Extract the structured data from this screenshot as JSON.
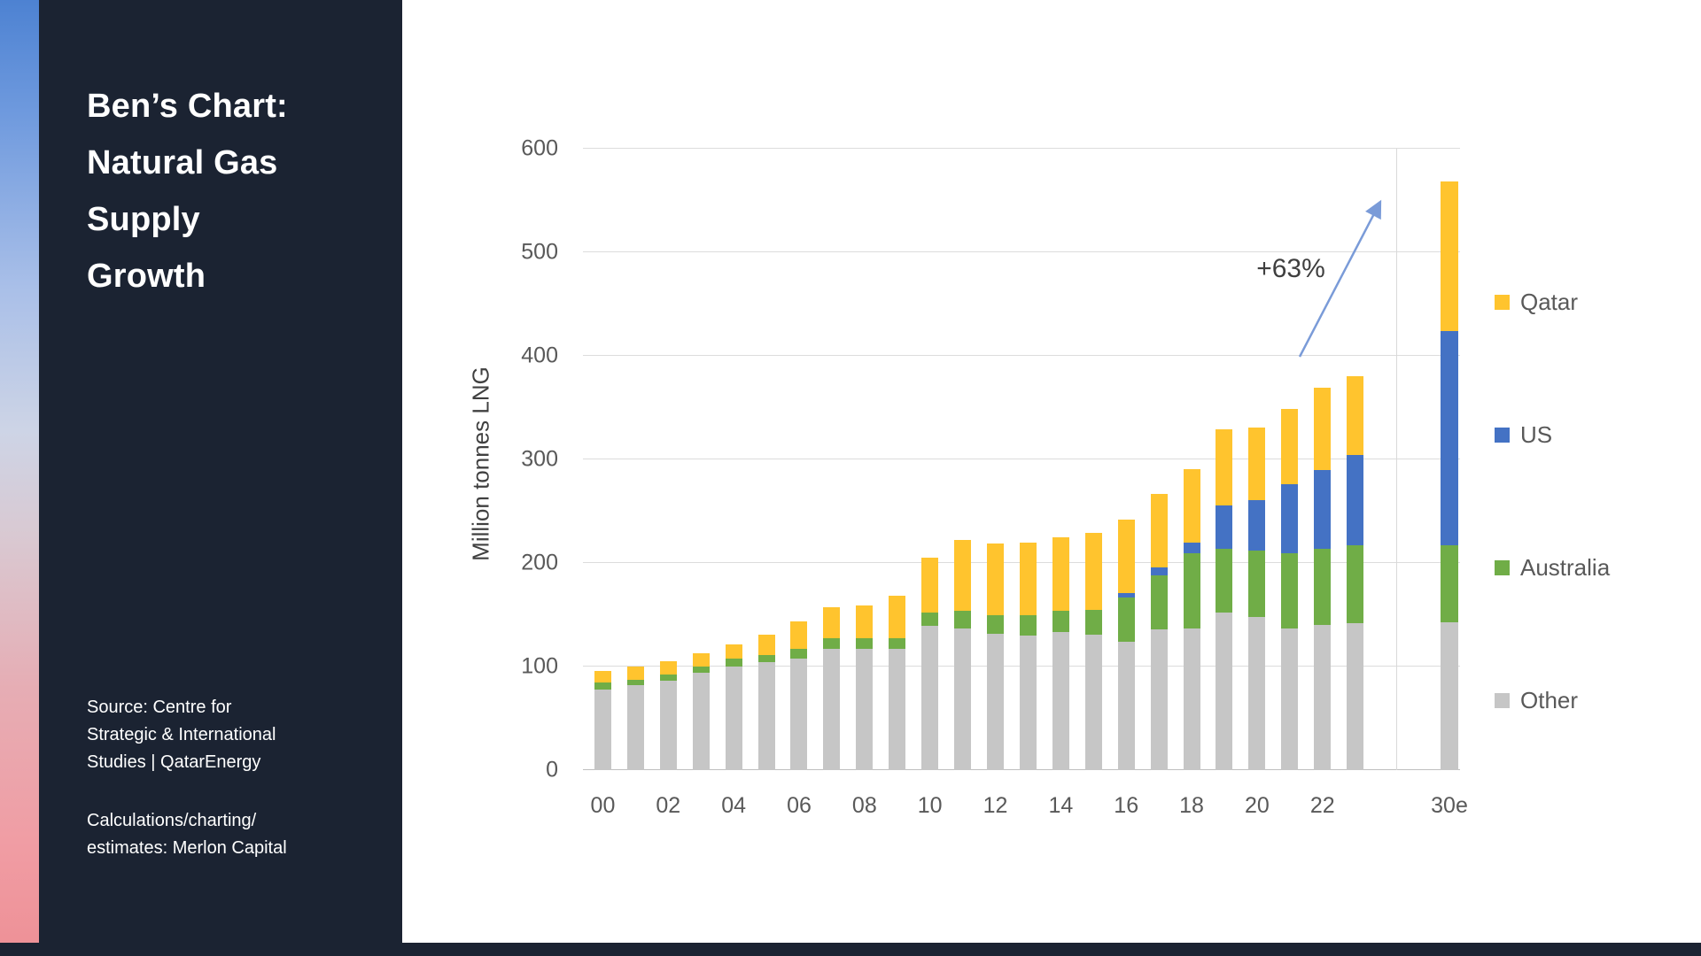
{
  "sidebar": {
    "bg_color": "#1b2332",
    "title_lines": [
      "Ben’s Chart:",
      "Natural Gas",
      "Supply",
      "Growth"
    ],
    "source_lines": [
      "Source: Centre for",
      "Strategic & International",
      "Studies | QatarEnergy"
    ],
    "credits_lines": [
      "Calculations/charting/",
      "estimates: Merlon Capital"
    ]
  },
  "chart_data": {
    "type": "bar",
    "stacked": true,
    "title": "",
    "xlabel": "",
    "ylabel": "Million tonnes LNG",
    "ylim": [
      0,
      600
    ],
    "yticks": [
      0,
      100,
      200,
      300,
      400,
      500,
      600
    ],
    "grid": true,
    "legend_position": "right",
    "categories": [
      "00",
      "01",
      "02",
      "03",
      "04",
      "05",
      "06",
      "07",
      "08",
      "09",
      "10",
      "11",
      "12",
      "13",
      "14",
      "15",
      "16",
      "17",
      "18",
      "19",
      "20",
      "21",
      "22",
      "23",
      "30e"
    ],
    "x_tick_labels": [
      "00",
      "02",
      "04",
      "06",
      "08",
      "10",
      "12",
      "14",
      "16",
      "18",
      "20",
      "22",
      "30e"
    ],
    "series": [
      {
        "name": "Other",
        "color": "#C6C6C6",
        "values": [
          78,
          82,
          86,
          94,
          100,
          104,
          108,
          117,
          117,
          117,
          139,
          137,
          132,
          130,
          133,
          131,
          124,
          136,
          137,
          152,
          148,
          137,
          140,
          142,
          143
        ]
      },
      {
        "name": "Australia",
        "color": "#70AD47",
        "values": [
          7,
          5,
          6,
          6,
          8,
          7,
          9,
          10,
          10,
          10,
          13,
          17,
          18,
          20,
          21,
          24,
          43,
          52,
          72,
          62,
          64,
          72,
          74,
          75,
          74
        ]
      },
      {
        "name": "US",
        "color": "#4472C4",
        "values": [
          0,
          0,
          0,
          0,
          0,
          0,
          0,
          0,
          0,
          0,
          0,
          0,
          0,
          0,
          0,
          0,
          4,
          8,
          11,
          42,
          49,
          67,
          76,
          87,
          207
        ]
      },
      {
        "name": "Qatar",
        "color": "#FFC42E",
        "values": [
          11,
          13,
          13,
          13,
          13,
          20,
          27,
          30,
          32,
          41,
          53,
          68,
          69,
          70,
          71,
          74,
          71,
          71,
          71,
          73,
          70,
          73,
          79,
          76,
          144
        ]
      }
    ],
    "legend": [
      "Qatar",
      "US",
      "Australia",
      "Other"
    ],
    "annotation": {
      "text": "+63%",
      "arrow_color": "#7a9bd8"
    }
  }
}
